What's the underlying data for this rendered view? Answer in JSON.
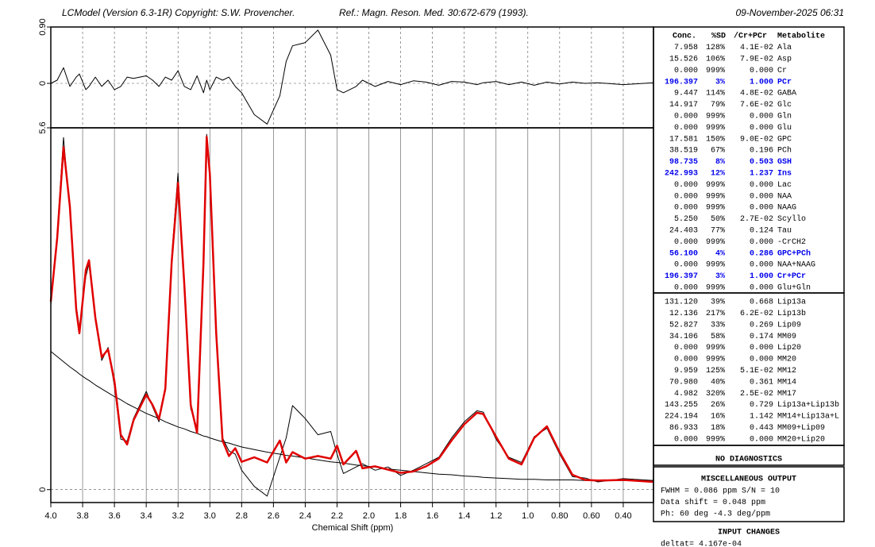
{
  "header": {
    "program": "LCModel (Version 6.3-1R) Copyright: S.W. Provencher.",
    "reference": "Ref.: Magn. Reson. Med. 30:672-679 (1993).",
    "date": "09-November-2025  06:31"
  },
  "chart_data": [
    {
      "type": "line",
      "x": [
        4.0,
        3.96,
        3.92,
        3.88,
        3.84,
        3.82,
        3.78,
        3.76,
        3.72,
        3.68,
        3.64,
        3.6,
        3.56,
        3.52,
        3.48,
        3.4,
        3.36,
        3.32,
        3.28,
        3.24,
        3.2,
        3.16,
        3.12,
        3.08,
        3.04,
        3.02,
        3.0,
        2.96,
        2.92,
        2.88,
        2.84,
        2.8,
        2.72,
        2.64,
        2.56,
        2.52,
        2.48,
        2.4,
        2.32,
        2.24,
        2.2,
        2.16,
        2.08,
        2.04,
        1.96,
        1.88,
        1.8,
        1.72,
        1.64,
        1.56,
        1.48,
        1.4,
        1.32,
        1.28,
        1.2,
        1.12,
        1.04,
        0.96,
        0.88,
        0.8,
        0.72,
        0.64,
        0.56,
        0.4,
        0.21
      ],
      "series": [
        {
          "color": "#000000",
          "line_width": 1,
          "values": [
            0.0,
            0.05,
            0.25,
            -0.05,
            0.1,
            0.15,
            -0.1,
            -0.05,
            0.1,
            -0.05,
            0.05,
            -0.1,
            -0.05,
            0.1,
            0.08,
            0.12,
            0.05,
            -0.05,
            0.1,
            0.05,
            0.2,
            -0.05,
            -0.1,
            0.12,
            -0.15,
            0.05,
            -0.1,
            0.1,
            0.05,
            0.1,
            -0.05,
            -0.15,
            -0.5,
            -0.65,
            -0.2,
            0.35,
            0.6,
            0.65,
            0.85,
            0.45,
            -0.1,
            -0.15,
            -0.05,
            0.05,
            -0.05,
            0.03,
            -0.02,
            0.04,
            0.02,
            -0.03,
            0.03,
            0.02,
            -0.02,
            0.01,
            0.03,
            -0.02,
            0.02,
            -0.03,
            0.02,
            -0.01,
            0.02,
            0.0,
            0.01,
            -0.02,
            0.01
          ]
        }
      ],
      "xlim": [
        4.0,
        0.21
      ],
      "ylim": [
        -0.71,
        0.9
      ],
      "yticks": [
        0,
        {
          "value": 0.9,
          "label": "0.90"
        }
      ],
      "grid": true
    },
    {
      "type": "line",
      "x": [
        4.0,
        3.96,
        3.92,
        3.88,
        3.84,
        3.82,
        3.78,
        3.76,
        3.72,
        3.68,
        3.64,
        3.6,
        3.56,
        3.52,
        3.48,
        3.4,
        3.36,
        3.32,
        3.28,
        3.24,
        3.2,
        3.16,
        3.12,
        3.08,
        3.04,
        3.02,
        3.0,
        2.96,
        2.92,
        2.88,
        2.84,
        2.8,
        2.72,
        2.64,
        2.56,
        2.52,
        2.48,
        2.4,
        2.32,
        2.24,
        2.2,
        2.16,
        2.08,
        2.04,
        1.96,
        1.88,
        1.8,
        1.72,
        1.64,
        1.56,
        1.48,
        1.4,
        1.32,
        1.28,
        1.2,
        1.12,
        1.04,
        0.96,
        0.88,
        0.8,
        0.72,
        0.64,
        0.56,
        0.4,
        0.21
      ],
      "xlabel": "Chemical Shift (ppm)",
      "series": [
        {
          "color": "#000000",
          "line_width": 1,
          "values": [
            2.14,
            2.06,
            1.98,
            1.9,
            1.83,
            1.79,
            1.72,
            1.69,
            1.62,
            1.56,
            1.5,
            1.44,
            1.39,
            1.33,
            1.28,
            1.18,
            1.14,
            1.1,
            1.05,
            1.01,
            0.97,
            0.94,
            0.9,
            0.87,
            0.83,
            0.82,
            0.8,
            0.77,
            0.74,
            0.72,
            0.69,
            0.66,
            0.62,
            0.58,
            0.55,
            0.53,
            0.52,
            0.49,
            0.46,
            0.43,
            0.42,
            0.41,
            0.38,
            0.37,
            0.35,
            0.32,
            0.3,
            0.28,
            0.26,
            0.24,
            0.23,
            0.21,
            0.2,
            0.19,
            0.18,
            0.17,
            0.16,
            0.16,
            0.15,
            0.15,
            0.15,
            0.14,
            0.14,
            0.14,
            0.14
          ]
        },
        {
          "color": "#000000",
          "line_width": 1,
          "values": [
            2.85,
            3.95,
            5.45,
            4.3,
            2.85,
            2.5,
            3.3,
            3.5,
            2.7,
            2.0,
            2.2,
            1.6,
            0.78,
            0.75,
            1.1,
            1.52,
            1.28,
            1.05,
            1.6,
            3.6,
            4.9,
            3.1,
            1.25,
            0.95,
            3.4,
            5.5,
            4.8,
            2.5,
            0.8,
            0.6,
            0.55,
            0.3,
            0.05,
            -0.1,
            0.5,
            0.8,
            1.3,
            1.1,
            0.85,
            0.9,
            0.55,
            0.25,
            0.35,
            0.4,
            0.3,
            0.35,
            0.22,
            0.3,
            0.4,
            0.5,
            0.8,
            1.05,
            1.22,
            1.2,
            0.78,
            0.5,
            0.42,
            0.82,
            0.95,
            0.55,
            0.2,
            0.18,
            0.12,
            0.17,
            0.14
          ]
        },
        {
          "color": "#e00000",
          "line_width": 2.5,
          "values": [
            2.91,
            3.89,
            5.3,
            4.38,
            2.79,
            2.42,
            3.4,
            3.55,
            2.66,
            2.05,
            2.17,
            1.68,
            0.85,
            0.7,
            1.07,
            1.47,
            1.31,
            1.09,
            1.56,
            3.52,
            4.75,
            3.16,
            1.31,
            0.88,
            3.52,
            5.46,
            4.88,
            2.42,
            0.76,
            0.52,
            0.64,
            0.43,
            0.5,
            0.42,
            0.76,
            0.42,
            0.58,
            0.48,
            0.52,
            0.48,
            0.68,
            0.39,
            0.6,
            0.33,
            0.36,
            0.31,
            0.26,
            0.28,
            0.36,
            0.48,
            0.76,
            1.01,
            1.19,
            1.17,
            0.82,
            0.48,
            0.39,
            0.8,
            0.98,
            0.58,
            0.23,
            0.15,
            0.14,
            0.15,
            0.12
          ]
        }
      ],
      "xlim": [
        4.0,
        0.21
      ],
      "ylim": [
        -0.2,
        5.6
      ],
      "xticks": [
        {
          "value": 4,
          "label": "4.0"
        },
        3.8,
        3.6,
        3.4,
        3.2,
        {
          "value": 3,
          "label": "3.0"
        },
        2.8,
        2.6,
        2.4,
        2.2,
        {
          "value": 2,
          "label": "2.0"
        },
        1.8,
        1.6,
        1.4,
        1.2,
        {
          "value": 1,
          "label": "1.0"
        },
        {
          "value": 0.8,
          "label": "0.80"
        },
        {
          "value": 0.6,
          "label": "0.60"
        },
        {
          "value": 0.4,
          "label": "0.40"
        }
      ],
      "yticks": [
        0,
        5.6
      ],
      "grid": true
    }
  ],
  "table": {
    "columns": [
      "Conc.",
      "%SD",
      "/Cr+PCr",
      "Metabolite"
    ],
    "rows": [
      {
        "cells": [
          "7.958",
          "128%",
          "4.1E-02",
          "Ala"
        ]
      },
      {
        "cells": [
          "15.526",
          "106%",
          "7.9E-02",
          "Asp"
        ]
      },
      {
        "cells": [
          "0.000",
          "999%",
          "0.000",
          "Cr"
        ]
      },
      {
        "cells": [
          "196.397",
          "3%",
          "1.000",
          "PCr"
        ],
        "color": "#0000ee"
      },
      {
        "cells": [
          "9.447",
          "114%",
          "4.8E-02",
          "GABA"
        ]
      },
      {
        "cells": [
          "14.917",
          "79%",
          "7.6E-02",
          "Glc"
        ]
      },
      {
        "cells": [
          "0.000",
          "999%",
          "0.000",
          "Gln"
        ]
      },
      {
        "cells": [
          "0.000",
          "999%",
          "0.000",
          "Glu"
        ]
      },
      {
        "cells": [
          "17.581",
          "150%",
          "9.0E-02",
          "GPC"
        ]
      },
      {
        "cells": [
          "38.519",
          "67%",
          "0.196",
          "PCh"
        ]
      },
      {
        "cells": [
          "98.735",
          "8%",
          "0.503",
          "GSH"
        ],
        "color": "#0000ee"
      },
      {
        "cells": [
          "242.993",
          "12%",
          "1.237",
          "Ins"
        ],
        "color": "#0000ee"
      },
      {
        "cells": [
          "0.000",
          "999%",
          "0.000",
          "Lac"
        ]
      },
      {
        "cells": [
          "0.000",
          "999%",
          "0.000",
          "NAA"
        ]
      },
      {
        "cells": [
          "0.000",
          "999%",
          "0.000",
          "NAAG"
        ]
      },
      {
        "cells": [
          "5.250",
          "50%",
          "2.7E-02",
          "Scyllo"
        ]
      },
      {
        "cells": [
          "24.403",
          "77%",
          "0.124",
          "Tau"
        ]
      },
      {
        "cells": [
          "0.000",
          "999%",
          "0.000",
          "-CrCH2"
        ]
      },
      {
        "cells": [
          "56.100",
          "4%",
          "0.286",
          "GPC+PCh"
        ],
        "color": "#0000ee"
      },
      {
        "cells": [
          "0.000",
          "999%",
          "0.000",
          "NAA+NAAG"
        ]
      },
      {
        "cells": [
          "196.397",
          "3%",
          "1.000",
          "Cr+PCr"
        ],
        "color": "#0000ee"
      },
      {
        "cells": [
          "0.000",
          "999%",
          "0.000",
          "Glu+Gln"
        ]
      }
    ]
  },
  "lipid_table": {
    "rows": [
      {
        "cells": [
          "131.120",
          "39%",
          "0.668",
          "Lip13a"
        ]
      },
      {
        "cells": [
          "12.136",
          "217%",
          "6.2E-02",
          "Lip13b"
        ]
      },
      {
        "cells": [
          "52.827",
          "33%",
          "0.269",
          "Lip09"
        ]
      },
      {
        "cells": [
          "34.106",
          "58%",
          "0.174",
          "MM09"
        ]
      },
      {
        "cells": [
          "0.000",
          "999%",
          "0.000",
          "Lip20"
        ]
      },
      {
        "cells": [
          "0.000",
          "999%",
          "0.000",
          "MM20"
        ]
      },
      {
        "cells": [
          "9.959",
          "125%",
          "5.1E-02",
          "MM12"
        ]
      },
      {
        "cells": [
          "70.980",
          "40%",
          "0.361",
          "MM14"
        ]
      },
      {
        "cells": [
          "4.982",
          "320%",
          "2.5E-02",
          "MM17"
        ]
      },
      {
        "cells": [
          "143.255",
          "26%",
          "0.729",
          "Lip13a+Lip13b"
        ]
      },
      {
        "cells": [
          "224.194",
          "16%",
          "1.142",
          "MM14+Lip13a+L"
        ]
      },
      {
        "cells": [
          "86.933",
          "18%",
          "0.443",
          "MM09+Lip09"
        ]
      },
      {
        "cells": [
          "0.000",
          "999%",
          "0.000",
          "MM20+Lip20"
        ]
      }
    ]
  },
  "diagnostics": "NO DIAGNOSTICS",
  "misc": {
    "title": "MISCELLANEOUS OUTPUT",
    "lines": [
      "FWHM = 0.086 ppm    S/N =  10",
      "Data shift = 0.048 ppm",
      "Ph:  60 deg       -4.3 deg/ppm"
    ]
  },
  "input_changes": {
    "title": "INPUT CHANGES",
    "lines": [
      "deltat= 4.167e-04"
    ]
  }
}
